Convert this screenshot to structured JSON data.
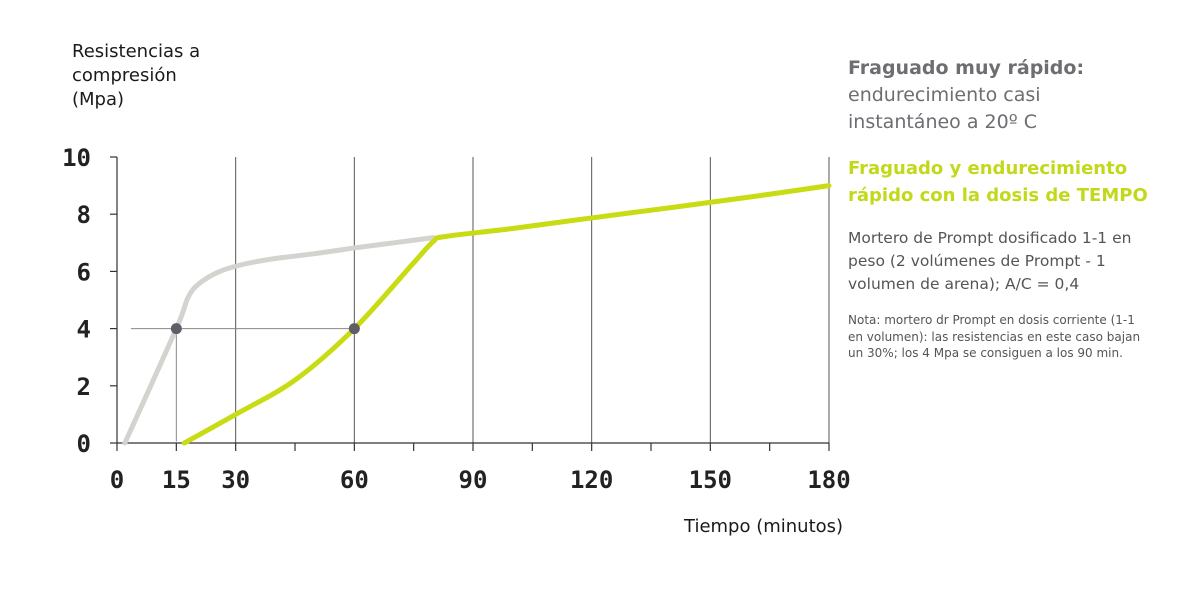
{
  "chart_data": {
    "type": "line",
    "ylabel": "Resistencias a compresión (Mpa)",
    "xlabel": "Tiempo (minutos)",
    "xlim": [
      0,
      180
    ],
    "ylim": [
      0,
      10
    ],
    "x_ticks": [
      0,
      15,
      30,
      60,
      90,
      120,
      150,
      180
    ],
    "x_tick_labels": [
      "0",
      "15",
      "30",
      "60",
      "90",
      "120",
      "150",
      "180"
    ],
    "x_minor_ticks": [
      45,
      75,
      105,
      135,
      165
    ],
    "y_ticks": [
      0,
      2,
      4,
      6,
      8,
      10
    ],
    "y_tick_labels": [
      "0",
      "2",
      "4",
      "6",
      "8",
      "10"
    ],
    "highlight_tick_x": 15,
    "grid": "vertical",
    "series": [
      {
        "name": "Fraguado muy rápido",
        "color": "#d3d3cf",
        "x": [
          2,
          15,
          18,
          21,
          26,
          32,
          40,
          50,
          60,
          70,
          80
        ],
        "y": [
          0,
          4,
          5.1,
          5.6,
          6.0,
          6.25,
          6.45,
          6.62,
          6.82,
          7.0,
          7.18
        ]
      },
      {
        "name": "Fraguado y endurecimiento rápido con la dosis de TEMPO",
        "color": "#c8dc14",
        "x": [
          17,
          30,
          45,
          60,
          75,
          80,
          83,
          100,
          120,
          140,
          160,
          180
        ],
        "y": [
          0,
          1.0,
          2.2,
          4.0,
          6.3,
          7.05,
          7.22,
          7.5,
          7.87,
          8.23,
          8.6,
          9.0
        ]
      }
    ],
    "markers": [
      {
        "x": 15,
        "y": 4,
        "color": "#5e5e66"
      },
      {
        "x": 60,
        "y": 4,
        "color": "#5e5e66"
      }
    ],
    "reference_lines": [
      {
        "type": "horizontal",
        "y": 4,
        "x_from": 2,
        "x_to": 60,
        "color": "#888888"
      },
      {
        "type": "vertical",
        "x": 15,
        "y_from": 0.4,
        "y_to": 4,
        "color": "#888888"
      }
    ]
  },
  "labels": {
    "y_axis_line1": "Resistencias a",
    "y_axis_line2": "compresión",
    "y_axis_line3": "(Mpa)",
    "x_axis": "Tiempo (minutos)"
  },
  "legend": {
    "gray_title": "Fraguado muy rápido:",
    "gray_text": "endurecimiento casi instantáneo a 20º C",
    "green_text": "Fraguado y endurecimiento rápido con la dosis de TEMPO",
    "description": "Mortero de Prompt dosificado 1-1 en peso (2 volúmenes de Prompt - 1 volumen de arena); A/C = 0,4",
    "note": "Nota: mortero dr Prompt en dosis corriente (1-1 en volumen): las resistencias en este caso bajan un 30%; los 4 Mpa se consiguen a los 90 min."
  },
  "colors": {
    "gray_series": "#d3d3cf",
    "green_series": "#c8dc14",
    "axis": "#333333",
    "highlight_tick": "#6d6d72"
  }
}
